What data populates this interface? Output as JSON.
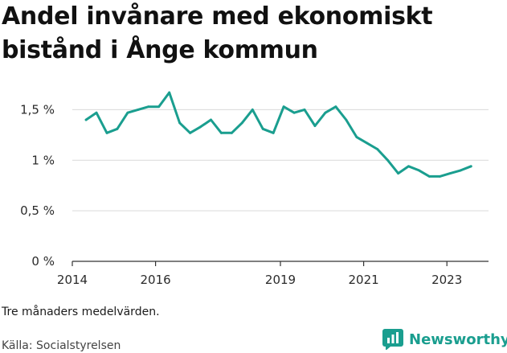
{
  "title": "Andel invånare med ekonomiskt bistånd i Ånge kommun",
  "note": "Tre månaders medelvärden.",
  "source": "Källa: Socialstyrelsen",
  "brand": {
    "name": "Newsworthy",
    "icon": "bar-chart-logo-icon",
    "color": "#1a9e8f"
  },
  "chart_data": {
    "type": "line",
    "line_color": "#1a9e8f",
    "grid": true,
    "xlim": [
      2014.0,
      2024.0
    ],
    "ylim": [
      0,
      1.75
    ],
    "y_ticks": [
      {
        "value": 0,
        "label": "0 %"
      },
      {
        "value": 0.5,
        "label": "0,5 %"
      },
      {
        "value": 1,
        "label": "1 %"
      },
      {
        "value": 1.5,
        "label": "1,5 %"
      }
    ],
    "x_ticks": [
      {
        "value": 2014.0,
        "label": "2014"
      },
      {
        "value": 2016.0,
        "label": "2016"
      },
      {
        "value": 2019.0,
        "label": "2019"
      },
      {
        "value": 2021.0,
        "label": "2021"
      },
      {
        "value": 2023.0,
        "label": "2023"
      }
    ],
    "series": [
      {
        "x": [
          2014.33,
          2014.58,
          2014.83,
          2015.08,
          2015.33,
          2015.58,
          2015.83,
          2016.08,
          2016.33,
          2016.58,
          2016.83,
          2017.08,
          2017.33,
          2017.58,
          2017.83,
          2018.08,
          2018.33,
          2018.58,
          2018.83,
          2019.08,
          2019.33,
          2019.58,
          2019.83,
          2020.08,
          2020.33,
          2020.58,
          2020.83,
          2021.08,
          2021.33,
          2021.58,
          2021.83,
          2022.08,
          2022.33,
          2022.58,
          2022.83,
          2023.08,
          2023.33,
          2023.58
        ],
        "values": [
          1.4,
          1.47,
          1.27,
          1.31,
          1.47,
          1.5,
          1.53,
          1.53,
          1.67,
          1.37,
          1.27,
          1.33,
          1.4,
          1.27,
          1.27,
          1.37,
          1.5,
          1.31,
          1.27,
          1.53,
          1.47,
          1.5,
          1.34,
          1.47,
          1.53,
          1.4,
          1.23,
          1.17,
          1.11,
          1.0,
          0.87,
          0.94,
          0.9,
          0.84,
          0.84,
          0.87,
          0.9,
          0.94
        ]
      }
    ]
  }
}
